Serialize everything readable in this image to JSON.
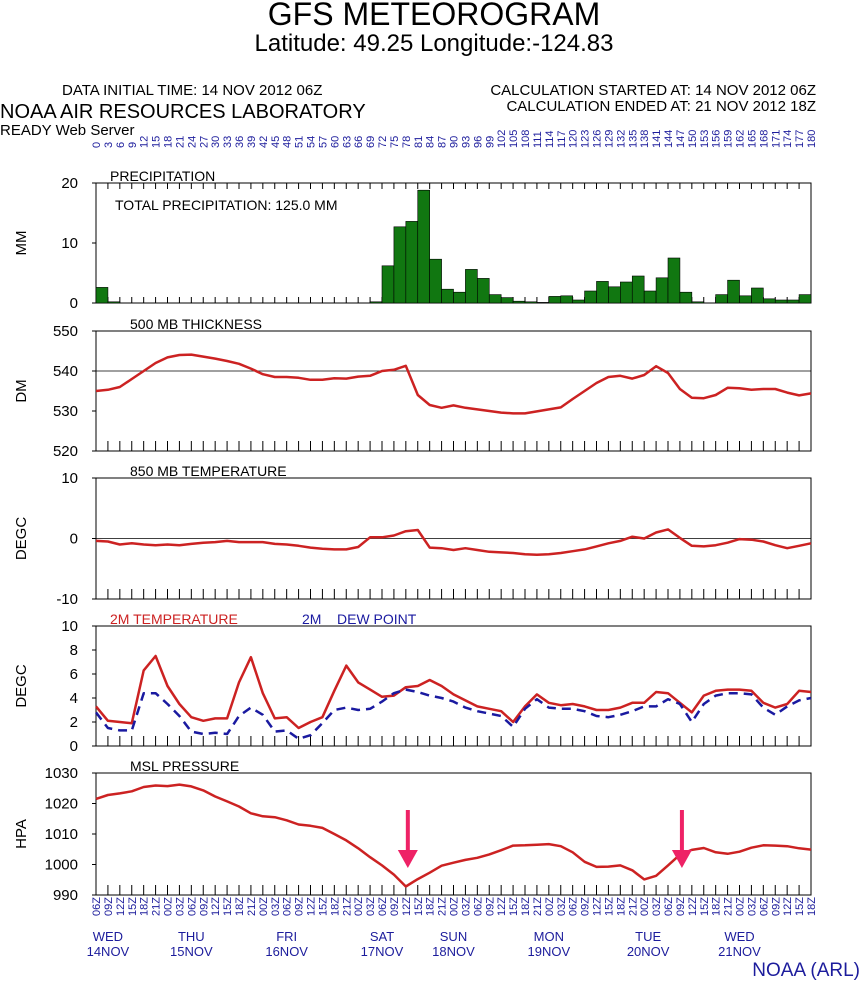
{
  "header": {
    "title": "GFS METEOROGRAM",
    "subtitle": "Latitude: 49.25 Longitude:-124.83",
    "init_time": "DATA INITIAL TIME: 14 NOV 2012 06Z",
    "lab": "NOAA AIR RESOURCES LABORATORY",
    "server": "READY Web Server",
    "calc_started": "CALCULATION STARTED AT: 14 NOV 2012 06Z",
    "calc_ended": "CALCULATION ENDED AT: 21 NOV 2012 18Z"
  },
  "footer": {
    "credit": "NOAA (ARL)"
  },
  "colors": {
    "precip": "#117711",
    "line": "#cc2222",
    "dew": "#1a1aa0",
    "axis_text": "#1c1c9c",
    "arrow": "#ee2266"
  },
  "forecast_hours": [
    "0",
    "3",
    "6",
    "9",
    "12",
    "15",
    "18",
    "21",
    "24",
    "27",
    "30",
    "33",
    "36",
    "39",
    "42",
    "45",
    "48",
    "51",
    "54",
    "57",
    "60",
    "63",
    "66",
    "69",
    "72",
    "75",
    "78",
    "81",
    "84",
    "87",
    "90",
    "93",
    "96",
    "99",
    "102",
    "105",
    "108",
    "111",
    "114",
    "117",
    "120",
    "123",
    "126",
    "129",
    "132",
    "135",
    "138",
    "141",
    "144",
    "147",
    "150",
    "153",
    "156",
    "159",
    "162",
    "165",
    "168",
    "171",
    "174",
    "177",
    "180"
  ],
  "time_labels": [
    "06Z",
    "09Z",
    "12Z",
    "15Z",
    "18Z",
    "21Z",
    "00Z",
    "03Z",
    "06Z",
    "09Z",
    "12Z",
    "15Z",
    "18Z",
    "21Z",
    "00Z",
    "03Z",
    "06Z",
    "09Z",
    "12Z",
    "15Z",
    "18Z",
    "21Z",
    "00Z",
    "03Z",
    "06Z",
    "09Z",
    "12Z",
    "15Z",
    "18Z",
    "21Z",
    "00Z",
    "03Z",
    "06Z",
    "09Z",
    "12Z",
    "15Z",
    "18Z",
    "21Z",
    "00Z",
    "03Z",
    "06Z",
    "09Z",
    "12Z",
    "15Z",
    "18Z",
    "21Z",
    "00Z",
    "03Z",
    "06Z",
    "09Z",
    "12Z",
    "15Z",
    "18Z",
    "21Z",
    "00Z",
    "03Z",
    "06Z",
    "09Z",
    "12Z",
    "15Z",
    "18Z"
  ],
  "day_labels": [
    {
      "day": "WED",
      "date": "14NOV",
      "hour": 3
    },
    {
      "day": "THU",
      "date": "15NOV",
      "hour": 24
    },
    {
      "day": "FRI",
      "date": "16NOV",
      "hour": 48
    },
    {
      "day": "SAT",
      "date": "17NOV",
      "hour": 72
    },
    {
      "day": "SUN",
      "date": "18NOV",
      "hour": 90
    },
    {
      "day": "MON",
      "date": "19NOV",
      "hour": 114
    },
    {
      "day": "TUE",
      "date": "20NOV",
      "hour": 139
    },
    {
      "day": "WED",
      "date": "21NOV",
      "hour": 162
    }
  ],
  "chart_data": [
    {
      "type": "bar",
      "title": "PRECIPITATION",
      "annotation": "TOTAL PRECIPITATION: 125.0 MM",
      "ylabel": "MM",
      "ylim": [
        0,
        20
      ],
      "yticks": [
        "0",
        "10",
        "20"
      ],
      "x": [
        0,
        3,
        6,
        9,
        12,
        15,
        18,
        21,
        24,
        27,
        30,
        33,
        36,
        39,
        42,
        45,
        48,
        51,
        54,
        57,
        60,
        63,
        66,
        69,
        72,
        75,
        78,
        81,
        84,
        87,
        90,
        93,
        96,
        99,
        102,
        105,
        108,
        111,
        114,
        117,
        120,
        123,
        126,
        129,
        132,
        135,
        138,
        141,
        144,
        147,
        150,
        153,
        156,
        159,
        162,
        165,
        168,
        171,
        174,
        177
      ],
      "values": [
        2.6,
        0.2,
        0,
        0,
        0,
        0,
        0,
        0,
        0,
        0,
        0,
        0,
        0,
        0,
        0,
        0,
        0,
        0,
        0,
        0,
        0,
        0,
        0,
        0.2,
        6.2,
        12.7,
        13.6,
        18.8,
        7.3,
        2.3,
        1.8,
        5.6,
        4.1,
        1.4,
        0.9,
        0.3,
        0.2,
        0.1,
        1.1,
        1.2,
        0.5,
        2.0,
        3.6,
        2.7,
        3.5,
        4.5,
        2.0,
        4.2,
        7.5,
        1.8,
        0.2,
        0,
        1.4,
        3.8,
        1.2,
        2.5,
        0.7,
        0.5,
        0.5,
        1.4
      ]
    },
    {
      "type": "line",
      "title": "500 MB  THICKNESS",
      "ylabel": "DM",
      "ylim": [
        520,
        550
      ],
      "yticks": [
        "520",
        "530",
        "540",
        "550"
      ],
      "reference_line": 540,
      "x": [
        0,
        3,
        6,
        9,
        12,
        15,
        18,
        21,
        24,
        27,
        30,
        33,
        36,
        39,
        42,
        45,
        48,
        51,
        54,
        57,
        60,
        63,
        66,
        69,
        72,
        75,
        78,
        81,
        84,
        87,
        90,
        93,
        96,
        99,
        102,
        105,
        108,
        111,
        114,
        117,
        120,
        123,
        126,
        129,
        132,
        135,
        138,
        141,
        144,
        147,
        150,
        153,
        156,
        159,
        162,
        165,
        168,
        171,
        174,
        177,
        180
      ],
      "series": [
        {
          "name": "500 MB  THICKNESS",
          "values": [
            535,
            535.3,
            536,
            538,
            540,
            542,
            543.4,
            544,
            544.1,
            543.6,
            543.1,
            542.5,
            541.8,
            540.6,
            539.2,
            538.5,
            538.5,
            538.3,
            537.8,
            537.8,
            538.2,
            538.1,
            538.6,
            538.8,
            540,
            540.3,
            541.3,
            534,
            531.5,
            530.8,
            531.4,
            530.8,
            530.4,
            530,
            529.6,
            529.4,
            529.4,
            529.9,
            530.4,
            530.9,
            533,
            535,
            537,
            538.5,
            538.8,
            538.1,
            539,
            541.2,
            539.5,
            535.5,
            533.3,
            533.2,
            534,
            535.8,
            535.7,
            535.3,
            535.5,
            535.5,
            534.6,
            533.9,
            534.4
          ]
        }
      ]
    },
    {
      "type": "line",
      "title": "850 MB  TEMPERATURE",
      "ylabel": "DEGC",
      "ylim": [
        -10,
        10
      ],
      "yticks": [
        "-10",
        "0",
        "10"
      ],
      "reference_line": 0,
      "x": [
        0,
        3,
        6,
        9,
        12,
        15,
        18,
        21,
        24,
        27,
        30,
        33,
        36,
        39,
        42,
        45,
        48,
        51,
        54,
        57,
        60,
        63,
        66,
        69,
        72,
        75,
        78,
        81,
        84,
        87,
        90,
        93,
        96,
        99,
        102,
        105,
        108,
        111,
        114,
        117,
        120,
        123,
        126,
        129,
        132,
        135,
        138,
        141,
        144,
        147,
        150,
        153,
        156,
        159,
        162,
        165,
        168,
        171,
        174,
        177,
        180
      ],
      "series": [
        {
          "name": "850 MB  TEMPERATURE",
          "values": [
            -0.4,
            -0.5,
            -1,
            -0.8,
            -1,
            -1.1,
            -1,
            -1.1,
            -0.9,
            -0.7,
            -0.6,
            -0.4,
            -0.6,
            -0.6,
            -0.6,
            -0.9,
            -1,
            -1.2,
            -1.5,
            -1.7,
            -1.8,
            -1.8,
            -1.4,
            0.2,
            0.2,
            0.5,
            1.2,
            1.4,
            -1.5,
            -1.6,
            -1.9,
            -1.6,
            -1.9,
            -2.2,
            -2.3,
            -2.4,
            -2.6,
            -2.7,
            -2.6,
            -2.4,
            -2.1,
            -1.8,
            -1.3,
            -0.8,
            -0.4,
            0.3,
            0,
            1,
            1.5,
            0.1,
            -1.2,
            -1.3,
            -1.1,
            -0.7,
            -0.1,
            -0.2,
            -0.5,
            -1.1,
            -1.6,
            -1.2,
            -0.8
          ]
        }
      ]
    },
    {
      "type": "line",
      "title": "",
      "ylabel": "DEGC",
      "ylim": [
        0,
        10
      ],
      "yticks": [
        "0",
        "2",
        "4",
        "6",
        "8",
        "10"
      ],
      "legend": {
        "temp_label": "2M TEMPERATURE",
        "dew_prefix": "2M",
        "dew_label": "DEW POINT"
      },
      "x": [
        0,
        3,
        6,
        9,
        12,
        15,
        18,
        21,
        24,
        27,
        30,
        33,
        36,
        39,
        42,
        45,
        48,
        51,
        54,
        57,
        60,
        63,
        66,
        69,
        72,
        75,
        78,
        81,
        84,
        87,
        90,
        93,
        96,
        99,
        102,
        105,
        108,
        111,
        114,
        117,
        120,
        123,
        126,
        129,
        132,
        135,
        138,
        141,
        144,
        147,
        150,
        153,
        156,
        159,
        162,
        165,
        168,
        171,
        174,
        177,
        180
      ],
      "series": [
        {
          "name": "2M TEMPERATURE",
          "values": [
            3.3,
            2.1,
            2,
            1.9,
            6.3,
            7.5,
            5,
            3.5,
            2.4,
            2.1,
            2.3,
            2.3,
            5.3,
            7.4,
            4.4,
            2.3,
            2.4,
            1.5,
            2,
            2.4,
            4.6,
            6.7,
            5.3,
            4.7,
            4.1,
            4.2,
            4.9,
            5,
            5.5,
            5,
            4.3,
            3.8,
            3.3,
            3.1,
            2.9,
            2,
            3.3,
            4.3,
            3.6,
            3.4,
            3.5,
            3.3,
            3,
            3,
            3.2,
            3.6,
            3.6,
            4.5,
            4.4,
            3.6,
            2.8,
            4.2,
            4.6,
            4.7,
            4.7,
            4.6,
            3.6,
            3.2,
            3.5,
            4.6,
            4.5
          ]
        },
        {
          "name": "DEW POINT",
          "values": [
            2.8,
            1.5,
            1.3,
            1.3,
            4.4,
            4.4,
            3.5,
            2.5,
            1.2,
            1,
            1.1,
            1,
            2.5,
            3.2,
            2.6,
            1.2,
            1.3,
            0.6,
            0.9,
            1.9,
            3,
            3.2,
            3,
            3.1,
            3.7,
            4.4,
            4.7,
            4.5,
            4.2,
            4,
            3.7,
            3.2,
            2.9,
            2.7,
            2.5,
            1.6,
            3.1,
            3.9,
            3.2,
            3.1,
            3.1,
            2.9,
            2.5,
            2.4,
            2.6,
            2.9,
            3.3,
            3.3,
            3.9,
            3.5,
            2,
            3.5,
            4.2,
            4.4,
            4.4,
            4.3,
            3.2,
            2.6,
            3.3,
            3.8,
            4
          ]
        }
      ]
    },
    {
      "type": "line",
      "title": "MSL PRESSURE",
      "ylabel": "HPA",
      "ylim": [
        990,
        1030
      ],
      "yticks": [
        "990",
        "1000",
        "1010",
        "1020",
        "1030"
      ],
      "x": [
        0,
        3,
        6,
        9,
        12,
        15,
        18,
        21,
        24,
        27,
        30,
        33,
        36,
        39,
        42,
        45,
        48,
        51,
        54,
        57,
        60,
        63,
        66,
        69,
        72,
        75,
        78,
        81,
        84,
        87,
        90,
        93,
        96,
        99,
        102,
        105,
        108,
        111,
        114,
        117,
        120,
        123,
        126,
        129,
        132,
        135,
        138,
        141,
        144,
        147,
        150,
        153,
        156,
        159,
        162,
        165,
        168,
        171,
        174,
        177,
        180
      ],
      "series": [
        {
          "name": "MSL PRESSURE",
          "values": [
            1021.5,
            1022.8,
            1023.3,
            1024,
            1025.4,
            1025.9,
            1025.7,
            1026.2,
            1025.6,
            1024.3,
            1022.3,
            1020.7,
            1019,
            1016.8,
            1015.8,
            1015.5,
            1014.5,
            1013.1,
            1012.7,
            1012,
            1010,
            1007.9,
            1005.3,
            1002.4,
            999.7,
            996.7,
            992.8,
            995.2,
            997.3,
            999.6,
            1000.6,
            1001.5,
            1002.2,
            1003.3,
            1004.7,
            1006.2,
            1006.3,
            1006.5,
            1006.7,
            1006,
            1004,
            1000.9,
            999.2,
            999.3,
            999.7,
            998.1,
            995.1,
            996.3,
            999.7,
            1003.2,
            1004.8,
            1005.4,
            1004,
            1003.5,
            1004.2,
            1005.5,
            1006.3,
            1006.2,
            1006,
            1005.3,
            1004.9
          ]
        }
      ],
      "arrows_at_hours": [
        78,
        147
      ]
    }
  ]
}
